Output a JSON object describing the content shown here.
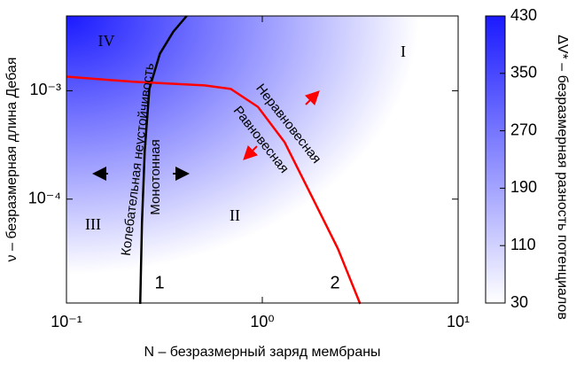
{
  "chart_data": {
    "type": "line",
    "xlabel": "N – безразмерный заряд мембраны",
    "ylabel": "ν – безразмерная длина Дебая",
    "xscale": "log",
    "yscale": "log",
    "xlim": [
      0.1,
      10
    ],
    "ylim": [
      1.1e-05,
      0.0049
    ],
    "xticks": [
      {
        "value": 0.1,
        "label": "10⁻¹"
      },
      {
        "value": 1,
        "label": "10⁰"
      },
      {
        "value": 10,
        "label": "10¹"
      }
    ],
    "yticks": [
      {
        "value": 0.0001,
        "label": "10⁻⁴"
      },
      {
        "value": 0.001,
        "label": "10⁻³"
      }
    ],
    "series": [
      {
        "color": "#000000",
        "x": [
          0.238,
          0.243,
          0.251,
          0.265,
          0.3,
          0.351,
          0.411
        ],
        "y": [
          1.08e-05,
          6.1e-05,
          0.00028,
          0.00104,
          0.0022,
          0.0035,
          0.0049
        ]
      },
      {
        "color": "#ff0000",
        "x": [
          0.1,
          0.219,
          0.507,
          0.69,
          0.95,
          1.3,
          1.78,
          2.43,
          3.16
        ],
        "y": [
          0.00135,
          0.00121,
          0.00112,
          0.00104,
          0.00071,
          0.000335,
          0.000108,
          3.5e-05,
          1.08e-05
        ]
      }
    ],
    "colorbar": {
      "label": "ΔV* – безразмерная разность потенциалов",
      "clim": [
        30,
        430
      ],
      "ticks": [
        30,
        110,
        190,
        270,
        350,
        430
      ],
      "colormap": [
        "#ffffff",
        "#1a1aff"
      ]
    },
    "annotations": [
      "I",
      "II",
      "III",
      "IV",
      "1",
      "2",
      "Колебательная неустойчивость",
      "Монотонная",
      "Неравновесная",
      "Равновесная"
    ]
  }
}
